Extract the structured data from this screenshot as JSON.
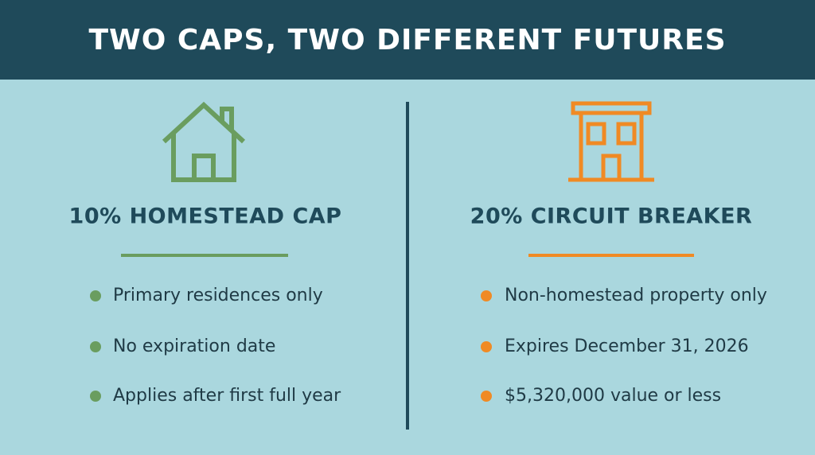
{
  "header": {
    "title": "TWO CAPS, TWO DIFFERENT FUTURES"
  },
  "columns": [
    {
      "title": "10% HOMESTEAD CAP",
      "items": [
        "Primary residences only",
        "No expiration date",
        "Applies after first full year"
      ]
    },
    {
      "title": "20% CIRCUIT BREAKER",
      "items": [
        "Non-homestead property only",
        "Expires December 31, 2026",
        "$5,320,000 value or less"
      ]
    }
  ]
}
